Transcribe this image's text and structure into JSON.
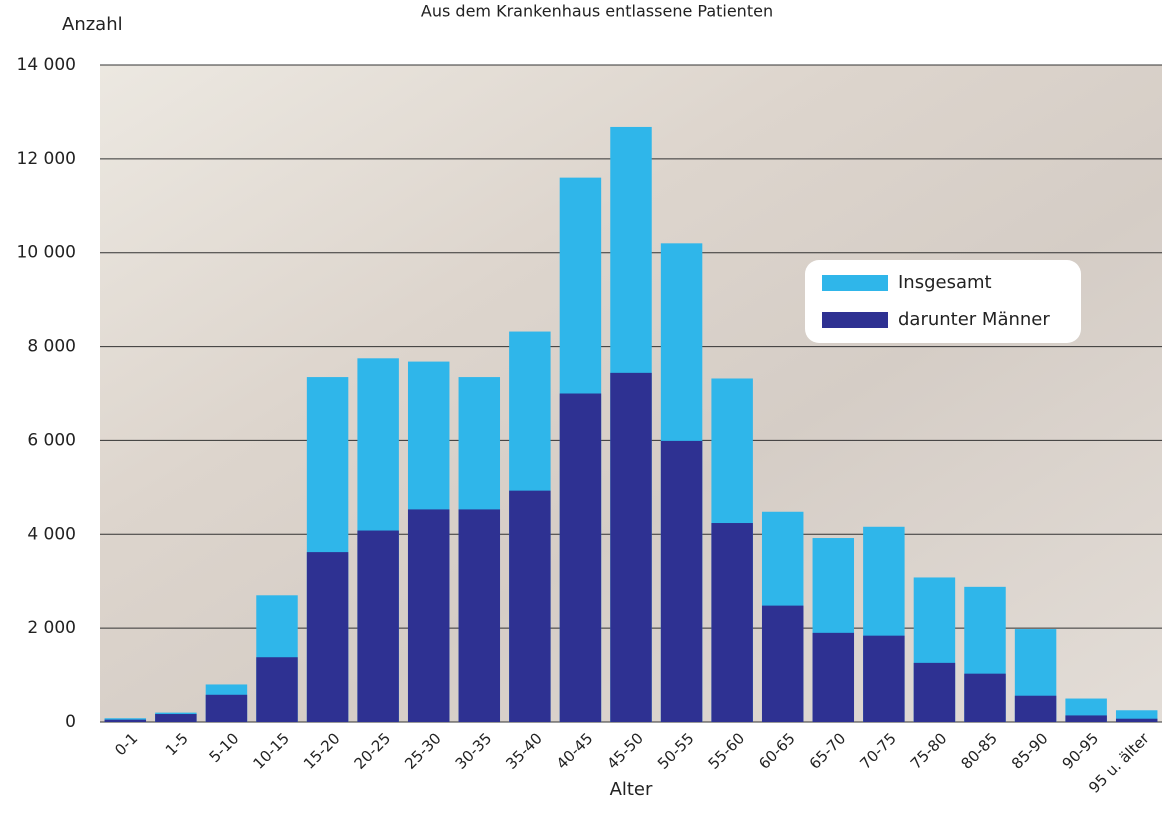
{
  "chart_data": {
    "type": "bar",
    "bar_mode": "overlay",
    "title": "Aus dem Krankenhaus entlassene Patienten",
    "y_label": "Anzahl",
    "x_label": "Alter",
    "categories": [
      "0-1",
      "1-5",
      "5-10",
      "10-15",
      "15-20",
      "20-25",
      "25-30",
      "30-35",
      "35-40",
      "40-45",
      "45-50",
      "50-55",
      "55-60",
      "60-65",
      "65-70",
      "70-75",
      "75-80",
      "80-85",
      "85-90",
      "90-95",
      "95 u. älter"
    ],
    "series": [
      {
        "name": "Insgesamt",
        "color": "#2fb6ea",
        "values": [
          80,
          200,
          800,
          2700,
          7350,
          7750,
          7680,
          7350,
          8320,
          11600,
          12680,
          10200,
          7320,
          4480,
          3920,
          4160,
          3080,
          2880,
          1980,
          500,
          250
        ]
      },
      {
        "name": "darunter Männer",
        "color": "#2e3192",
        "values": [
          50,
          170,
          580,
          1380,
          3620,
          4080,
          4530,
          4530,
          4930,
          7000,
          7440,
          5990,
          4240,
          2480,
          1900,
          1840,
          1260,
          1030,
          560,
          140,
          70
        ]
      }
    ],
    "ylim": [
      0,
      14000
    ],
    "yticks": [
      0,
      {
        "value": 2000,
        "label": "2 000"
      },
      {
        "value": 4000,
        "label": "4 000"
      },
      {
        "value": 6000,
        "label": "6 000"
      },
      {
        "value": 8000,
        "label": "8 000"
      },
      {
        "value": 10000,
        "label": "10 000"
      },
      {
        "value": 12000,
        "label": "12 000"
      },
      {
        "value": 14000,
        "label": "14 000"
      }
    ],
    "grid": true,
    "legend_position": "upper right"
  }
}
